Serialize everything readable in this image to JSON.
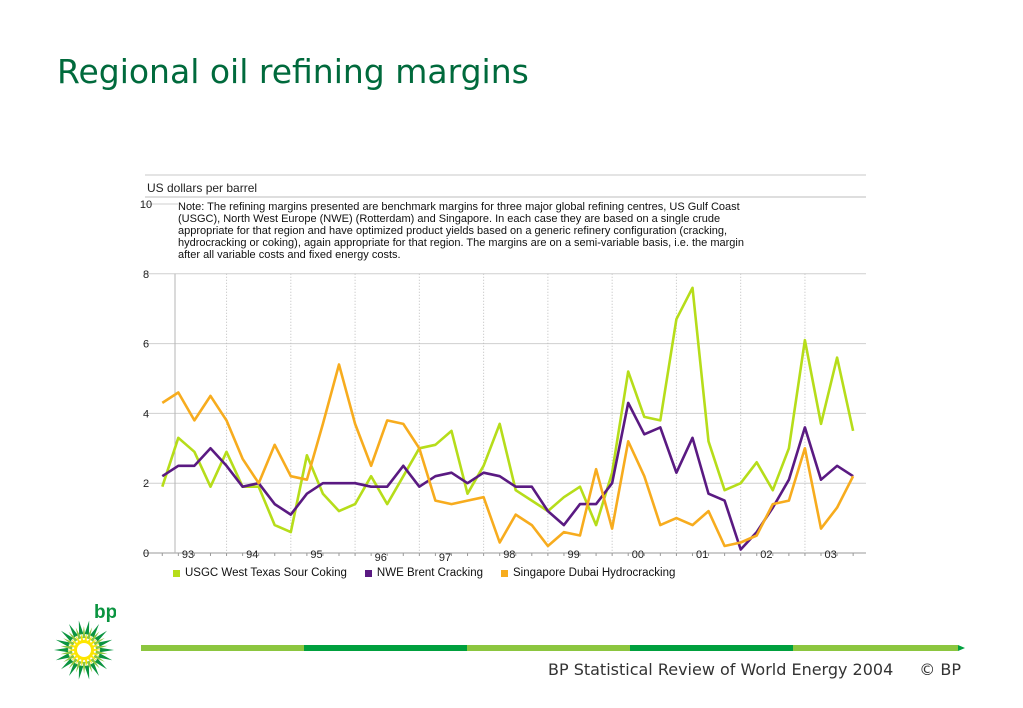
{
  "title": "Regional oil refining margins",
  "chart_data": {
    "type": "line",
    "ylabel": "US dollars per barrel",
    "ylim": [
      0,
      10
    ],
    "yticks": [
      0,
      2,
      4,
      6,
      8,
      10
    ],
    "xlim": [
      1992.7,
      2003.95
    ],
    "x_tick_labels": [
      "93",
      "94",
      "95",
      "96",
      "97",
      "98",
      "99",
      "00",
      "01",
      "02",
      "03"
    ],
    "note": "Note: The refining margins presented are benchmark margins for three major global refining centres, US Gulf Coast\n(USGC), North West Europe (NWE) (Rotterdam) and Singapore. In each case they are based on a single crude\nappropriate for that region and have optimized product yields based on a generic refinery configuration (cracking,\nhydrocracking or coking), again appropriate for that region. The margins are on a semi-variable basis, i.e. the margin\nafter all variable costs and fixed energy costs.",
    "x": [
      1993.0,
      1993.25,
      1993.5,
      1993.75,
      1994.0,
      1994.25,
      1994.5,
      1994.75,
      1995.0,
      1995.25,
      1995.5,
      1995.75,
      1996.0,
      1996.25,
      1996.5,
      1996.75,
      1997.0,
      1997.25,
      1997.5,
      1997.75,
      1998.0,
      1998.25,
      1998.5,
      1998.75,
      1999.0,
      1999.25,
      1999.5,
      1999.75,
      2000.0,
      2000.25,
      2000.5,
      2000.75,
      2001.0,
      2001.25,
      2001.5,
      2001.75,
      2002.0,
      2002.25,
      2002.5,
      2002.75,
      2003.0,
      2003.25,
      2003.5,
      2003.75
    ],
    "series": [
      {
        "name": "USGC West Texas Sour Coking",
        "color": "#b6dd1a",
        "values": [
          1.9,
          3.3,
          2.9,
          1.9,
          2.9,
          1.9,
          1.9,
          0.8,
          0.6,
          2.8,
          1.7,
          1.2,
          1.4,
          2.2,
          1.4,
          2.2,
          3.0,
          3.1,
          3.5,
          1.7,
          2.5,
          3.7,
          1.8,
          1.5,
          1.2,
          1.6,
          1.9,
          0.8,
          2.3,
          5.2,
          3.9,
          3.8,
          6.7,
          7.6,
          3.2,
          1.8,
          2.0,
          2.6,
          1.8,
          3.0,
          6.1,
          3.7,
          5.6,
          3.5
        ]
      },
      {
        "name": "NWE Brent Cracking",
        "color": "#5a1a82",
        "values": [
          2.2,
          2.5,
          2.5,
          3.0,
          2.5,
          1.9,
          2.0,
          1.4,
          1.1,
          1.7,
          2.0,
          2.0,
          2.0,
          1.9,
          1.9,
          2.5,
          1.9,
          2.2,
          2.3,
          2.0,
          2.3,
          2.2,
          1.9,
          1.9,
          1.2,
          0.8,
          1.4,
          1.4,
          2.0,
          4.3,
          3.4,
          3.6,
          2.3,
          3.3,
          1.7,
          1.5,
          0.1,
          0.6,
          1.3,
          2.1,
          3.6,
          2.1,
          2.5,
          2.2
        ]
      },
      {
        "name": "Singapore Dubai Hydrocracking",
        "color": "#f7ac1e",
        "values": [
          4.3,
          4.6,
          3.8,
          4.5,
          3.8,
          2.7,
          2.0,
          3.1,
          2.2,
          2.1,
          3.7,
          5.4,
          3.7,
          2.5,
          3.8,
          3.7,
          3.0,
          1.5,
          1.4,
          1.5,
          1.6,
          0.3,
          1.1,
          0.8,
          0.2,
          0.6,
          0.5,
          2.4,
          0.7,
          3.2,
          2.2,
          0.8,
          1.0,
          0.8,
          1.2,
          0.2,
          0.3,
          0.5,
          1.4,
          1.5,
          3.0,
          0.7,
          1.3,
          2.2
        ]
      }
    ],
    "legend_position": "bottom-left",
    "grid": true
  },
  "logo_text": "bp",
  "footer": {
    "source": "BP Statistical Review of World Energy 2004",
    "copyright": "© BP"
  }
}
